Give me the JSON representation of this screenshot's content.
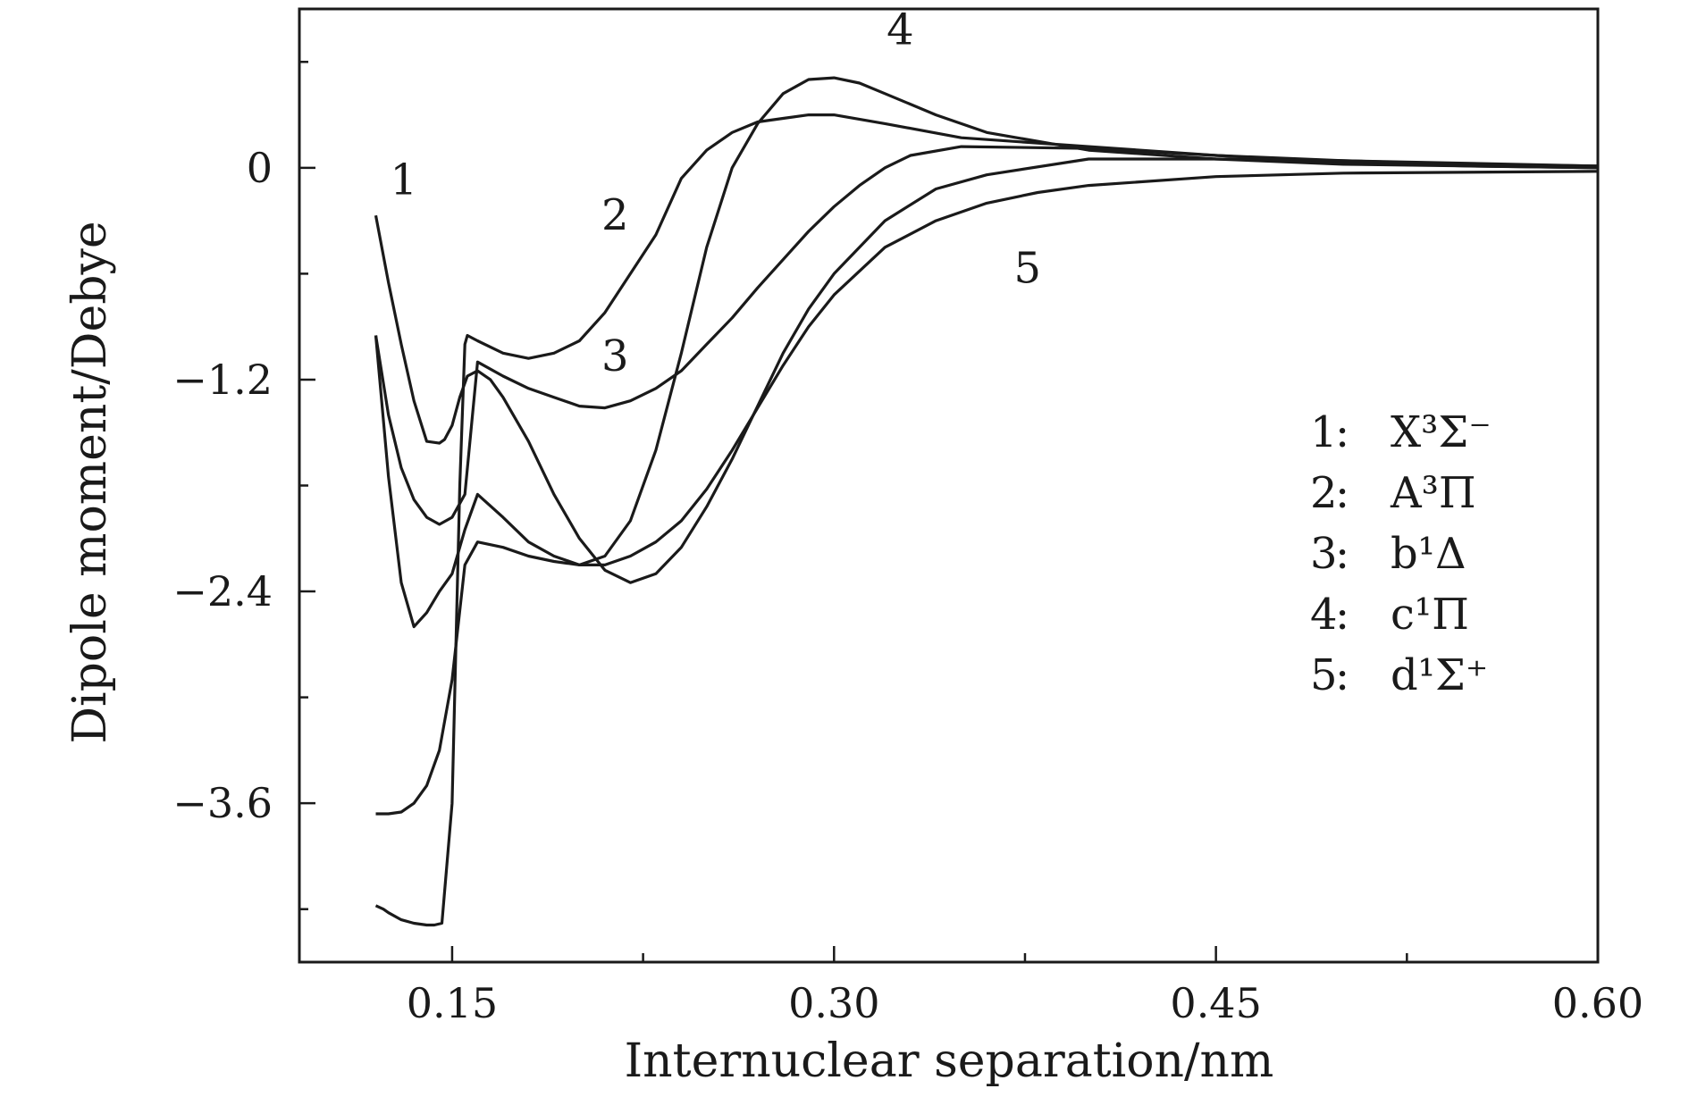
{
  "chart_data": {
    "type": "line",
    "title": "",
    "xlabel": "Internuclear separation/nm",
    "ylabel": "Dipole moment/Debye",
    "xlim": [
      0.09,
      0.6
    ],
    "ylim": [
      -4.5,
      0.9
    ],
    "xticks": [
      0.15,
      0.3,
      0.45,
      0.6
    ],
    "xtick_labels": [
      "0.15",
      "0.30",
      "0.45",
      "0.60"
    ],
    "xminor": [
      0.225,
      0.375,
      0.525
    ],
    "yticks": [
      0,
      -1.2,
      -2.4,
      -3.6
    ],
    "ytick_labels": [
      "0",
      "−1.2",
      "−2.4",
      "−3.6"
    ],
    "yminor": [
      0.6,
      -0.6,
      -1.8,
      -3.0,
      -4.2
    ],
    "grid": false,
    "legend_position": "right",
    "series": [
      {
        "name": "1",
        "label": "X³Σ⁻",
        "x": [
          0.12,
          0.125,
          0.13,
          0.135,
          0.14,
          0.145,
          0.147,
          0.15,
          0.153,
          0.156,
          0.16,
          0.165,
          0.17,
          0.18,
          0.19,
          0.2,
          0.21,
          0.22,
          0.23,
          0.24,
          0.25,
          0.26,
          0.27,
          0.28,
          0.29,
          0.3,
          0.32,
          0.34,
          0.36,
          0.4,
          0.45,
          0.5,
          0.55,
          0.6
        ],
        "y": [
          -0.27,
          -0.65,
          -1.0,
          -1.32,
          -1.55,
          -1.56,
          -1.54,
          -1.46,
          -1.3,
          -1.18,
          -1.15,
          -1.2,
          -1.3,
          -1.55,
          -1.85,
          -2.1,
          -2.28,
          -2.35,
          -2.3,
          -2.15,
          -1.92,
          -1.65,
          -1.35,
          -1.05,
          -0.8,
          -0.6,
          -0.3,
          -0.12,
          -0.04,
          0.05,
          0.05,
          0.04,
          0.02,
          0.01
        ]
      },
      {
        "name": "2",
        "label": "A³Π",
        "x": [
          0.12,
          0.123,
          0.125,
          0.13,
          0.135,
          0.14,
          0.143,
          0.146,
          0.15,
          0.153,
          0.155,
          0.156,
          0.16,
          0.17,
          0.18,
          0.19,
          0.2,
          0.21,
          0.22,
          0.23,
          0.24,
          0.25,
          0.26,
          0.27,
          0.28,
          0.29,
          0.3,
          0.32,
          0.35,
          0.4,
          0.45,
          0.5,
          0.55,
          0.6
        ],
        "y": [
          -4.18,
          -4.2,
          -4.22,
          -4.26,
          -4.28,
          -4.29,
          -4.29,
          -4.28,
          -3.6,
          -1.8,
          -1.0,
          -0.95,
          -0.98,
          -1.05,
          -1.08,
          -1.05,
          -0.98,
          -0.82,
          -0.6,
          -0.38,
          -0.06,
          0.1,
          0.2,
          0.26,
          0.28,
          0.3,
          0.3,
          0.25,
          0.17,
          0.12,
          0.07,
          0.03,
          0.01,
          0.0
        ]
      },
      {
        "name": "3",
        "label": "b¹Δ",
        "x": [
          0.12,
          0.125,
          0.13,
          0.135,
          0.14,
          0.145,
          0.15,
          0.155,
          0.16,
          0.17,
          0.18,
          0.19,
          0.2,
          0.21,
          0.22,
          0.23,
          0.24,
          0.25,
          0.26,
          0.27,
          0.28,
          0.29,
          0.3,
          0.31,
          0.32,
          0.33,
          0.35,
          0.4,
          0.45,
          0.5,
          0.6
        ],
        "y": [
          -0.95,
          -1.4,
          -1.7,
          -1.88,
          -1.98,
          -2.02,
          -1.98,
          -1.85,
          -1.1,
          -1.18,
          -1.25,
          -1.3,
          -1.35,
          -1.36,
          -1.32,
          -1.25,
          -1.15,
          -1.0,
          -0.85,
          -0.68,
          -0.52,
          -0.36,
          -0.22,
          -0.1,
          0.0,
          0.07,
          0.12,
          0.11,
          0.07,
          0.04,
          0.01
        ]
      },
      {
        "name": "4",
        "label": "c¹Π",
        "x": [
          0.12,
          0.125,
          0.13,
          0.135,
          0.14,
          0.145,
          0.15,
          0.155,
          0.16,
          0.17,
          0.18,
          0.19,
          0.2,
          0.21,
          0.22,
          0.23,
          0.24,
          0.25,
          0.26,
          0.27,
          0.28,
          0.29,
          0.3,
          0.31,
          0.32,
          0.34,
          0.36,
          0.4,
          0.45,
          0.5,
          0.6
        ],
        "y": [
          -0.95,
          -1.75,
          -2.35,
          -2.6,
          -2.52,
          -2.4,
          -2.3,
          -2.05,
          -1.85,
          -1.98,
          -2.12,
          -2.2,
          -2.25,
          -2.2,
          -2.0,
          -1.6,
          -1.05,
          -0.45,
          0.0,
          0.25,
          0.42,
          0.5,
          0.51,
          0.48,
          0.42,
          0.3,
          0.2,
          0.1,
          0.05,
          0.02,
          0.0
        ]
      },
      {
        "name": "5",
        "label": "d¹Σ⁺",
        "x": [
          0.12,
          0.125,
          0.13,
          0.135,
          0.14,
          0.145,
          0.15,
          0.155,
          0.16,
          0.17,
          0.18,
          0.19,
          0.2,
          0.21,
          0.22,
          0.23,
          0.24,
          0.25,
          0.26,
          0.27,
          0.28,
          0.29,
          0.3,
          0.32,
          0.34,
          0.36,
          0.38,
          0.4,
          0.45,
          0.5,
          0.6
        ],
        "y": [
          -3.66,
          -3.66,
          -3.65,
          -3.6,
          -3.5,
          -3.3,
          -2.9,
          -2.25,
          -2.12,
          -2.15,
          -2.2,
          -2.23,
          -2.25,
          -2.25,
          -2.2,
          -2.12,
          -2.0,
          -1.82,
          -1.6,
          -1.36,
          -1.12,
          -0.9,
          -0.72,
          -0.45,
          -0.3,
          -0.2,
          -0.14,
          -0.1,
          -0.05,
          -0.03,
          -0.02
        ]
      }
    ],
    "annotations": [
      {
        "text": "1",
        "x": 0.131,
        "y": -0.15
      },
      {
        "text": "2",
        "x": 0.214,
        "y": -0.35
      },
      {
        "text": "3",
        "x": 0.214,
        "y": -1.15
      },
      {
        "text": "4",
        "x": 0.326,
        "y": 0.7
      },
      {
        "text": "5",
        "x": 0.376,
        "y": -0.65
      }
    ]
  }
}
